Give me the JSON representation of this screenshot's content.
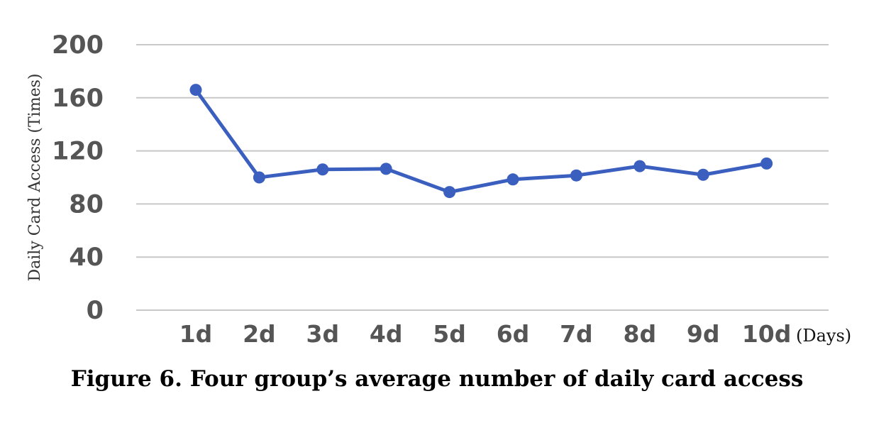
{
  "chart_data": {
    "type": "line",
    "title": "",
    "xlabel": "(Days)",
    "ylabel": "Daily Card Access (Times)",
    "categories": [
      "1d",
      "2d",
      "3d",
      "4d",
      "5d",
      "6d",
      "7d",
      "8d",
      "9d",
      "10d"
    ],
    "yticks": [
      "200",
      "160",
      "120",
      "80",
      "40",
      "0"
    ],
    "ylim": [
      0,
      200
    ],
    "grid": true,
    "legend": "none",
    "series": [
      {
        "values": [
          166,
          100,
          106,
          106.5,
          89,
          98.5,
          101.5,
          108.5,
          102,
          110.5
        ],
        "color": "#3a5fbf"
      }
    ]
  },
  "caption": "Figure 6. Four group’s average number of daily card access"
}
